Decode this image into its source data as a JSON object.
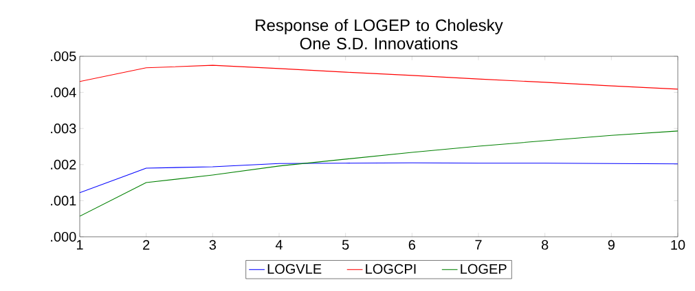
{
  "chart_data": {
    "type": "line",
    "title": "Response of LOGEP to Cholesky\nOne S.D. Innovations",
    "x": [
      1,
      2,
      3,
      4,
      5,
      6,
      7,
      8,
      9,
      10
    ],
    "series": [
      {
        "name": "LOGVLE",
        "color": "#0000ff",
        "values": [
          0.00122,
          0.0019,
          0.00194,
          0.00203,
          0.00204,
          0.00205,
          0.00204,
          0.00204,
          0.00203,
          0.00202
        ]
      },
      {
        "name": "LOGCPI",
        "color": "#ff0000",
        "values": [
          0.0043,
          0.00468,
          0.00475,
          0.00466,
          0.00456,
          0.00447,
          0.00437,
          0.00428,
          0.00418,
          0.00409
        ]
      },
      {
        "name": "LOGEP",
        "color": "#008000",
        "values": [
          0.00057,
          0.0015,
          0.00171,
          0.00196,
          0.00215,
          0.00234,
          0.00251,
          0.00266,
          0.00281,
          0.00293
        ]
      }
    ],
    "xlim": [
      1,
      10
    ],
    "xticks": [
      1,
      2,
      3,
      4,
      5,
      6,
      7,
      8,
      9,
      10
    ],
    "ylim": [
      0,
      0.005
    ],
    "yticks": [
      {
        "value": 0,
        "label": ".000"
      },
      {
        "value": 0.001,
        "label": ".001"
      },
      {
        "value": 0.002,
        "label": ".002"
      },
      {
        "value": 0.003,
        "label": ".003"
      },
      {
        "value": 0.004,
        "label": ".004"
      },
      {
        "value": 0.005,
        "label": ".005"
      }
    ],
    "legend": "bottom",
    "grid": false,
    "marker": "none",
    "line_style": "solid"
  }
}
